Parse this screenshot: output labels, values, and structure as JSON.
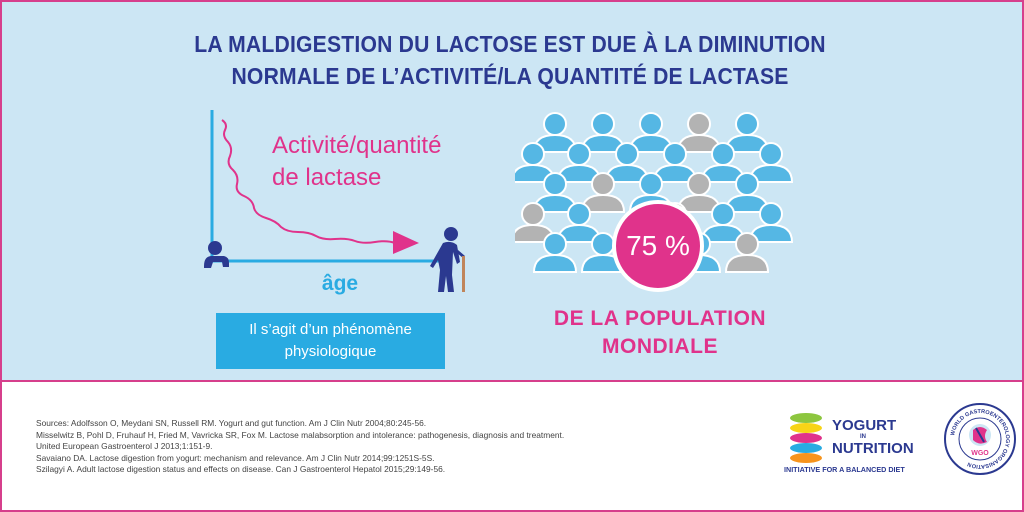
{
  "title": {
    "line1": "LA MALDIGESTION DU LACTOSE EST DUE À LA DIMINUTION",
    "line2": "NORMALE DE L’ACTIVITÉ/LA QUANTITÉ DE LACTASE"
  },
  "curve": {
    "label_line1": "Activité/quantité",
    "label_line2": "de lactase",
    "x_label": "âge"
  },
  "note": {
    "line1": "Il s’agit d’un phénomène",
    "line2": "physiologique"
  },
  "population": {
    "percent": "75 %",
    "label_line1": "DE LA POPULATION",
    "label_line2": "MONDIALE"
  },
  "sources": [
    "Sources: Adolfsson O, Meydani SN, Russell RM. Yogurt and gut function. Am J Clin Nutr 2004;80:245-56.",
    "Misselwitz B, Pohl D, Fruhauf H, Fried M, Vavricka SR, Fox M. Lactose malabsorption and intolerance: pathogenesis, diagnosis and treatment.",
    "United European Gastroenterol J 2013;1:151-9.",
    "Savaiano DA. Lactose digestion from yogurt: mechanism and relevance. Am J Clin Nutr 2014;99:1251S-5S.",
    "Szilagyi A. Adult lactose digestion status and effects on disease. Can J Gastroenterol Hepatol 2015;29:149-56."
  ],
  "logos": {
    "yin_line1": "YOGURT",
    "yin_line2": "IN",
    "yin_line3": "NUTRITION",
    "yin_tagline": "INITIATIVE FOR A BALANCED DIET",
    "wgo_ring": "WORLD GASTROENTEROLOGY ORGANISATION",
    "wgo_abbr": "WGO"
  },
  "colors": {
    "title_navy": "#2b3990",
    "accent_pink": "#e0338b",
    "accent_blue": "#29abe2",
    "background_light_blue": "#cce6f4",
    "people_blue": "#55b7e4",
    "people_grey": "#b3b3b3"
  },
  "icons": [
    "baby-icon",
    "elderly-person-icon",
    "arrow-head-icon",
    "person-icon",
    "yogurt-stack-icon",
    "wgo-seal-icon"
  ]
}
